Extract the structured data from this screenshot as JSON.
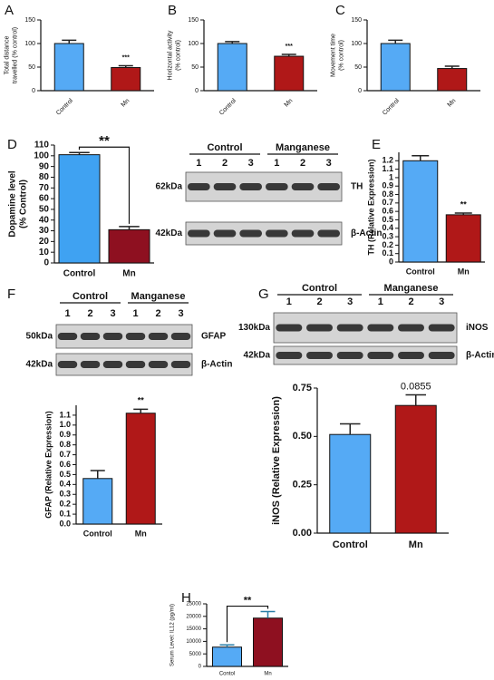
{
  "chart_data": [
    {
      "type": "bar",
      "panel": "A",
      "ylabel": [
        "Total distance",
        "travelled (% control)"
      ],
      "categories": [
        "Control",
        "Mn"
      ],
      "values": [
        100,
        49
      ],
      "errors": [
        7,
        4
      ],
      "colors": [
        "#55aaf5",
        "#b01818"
      ],
      "error_color": "#222",
      "ylim": [
        0,
        150
      ],
      "yticks": [
        0,
        50,
        100,
        150
      ],
      "annotation": "***"
    },
    {
      "type": "bar",
      "panel": "B",
      "ylabel": [
        "Horizontal activity",
        "(% control)"
      ],
      "categories": [
        "Control",
        "Mn"
      ],
      "values": [
        100,
        73
      ],
      "errors": [
        4,
        4
      ],
      "colors": [
        "#55aaf5",
        "#b01818"
      ],
      "error_color": "#222",
      "ylim": [
        0,
        150
      ],
      "yticks": [
        0,
        50,
        100,
        150
      ],
      "annotation": "***"
    },
    {
      "type": "bar",
      "panel": "C",
      "ylabel": [
        "Movement time",
        "(% control)"
      ],
      "categories": [
        "Control",
        "Mn"
      ],
      "values": [
        100,
        47
      ],
      "errors": [
        7,
        5
      ],
      "colors": [
        "#55aaf5",
        "#b01818"
      ],
      "error_color": "#222",
      "ylim": [
        0,
        150
      ],
      "yticks": [
        0,
        50,
        100,
        150
      ]
    },
    {
      "type": "bar",
      "panel": "D",
      "ylabel": [
        "Dopamine level",
        "(% Control)"
      ],
      "categories": [
        "Control",
        "Mn"
      ],
      "values": [
        101,
        31
      ],
      "errors": [
        2,
        3
      ],
      "colors": [
        "#3fa2f2",
        "#8e1020"
      ],
      "error_color": "#222",
      "ylim": [
        0,
        110
      ],
      "yticks": [
        0,
        10,
        20,
        30,
        40,
        50,
        60,
        70,
        80,
        90,
        100,
        110
      ],
      "annotation": "**"
    },
    {
      "type": "bar",
      "panel": "E",
      "ylabel": [
        "TH (Relative Expression)"
      ],
      "categories": [
        "Control",
        "Mn"
      ],
      "values": [
        1.2,
        0.56
      ],
      "errors": [
        0.06,
        0.02
      ],
      "colors": [
        "#55aaf5",
        "#b01818"
      ],
      "error_color": "#222",
      "ylim": [
        0,
        1.3
      ],
      "yticks": [
        0,
        0.1,
        0.2,
        0.3,
        0.4,
        0.5,
        0.6,
        0.7,
        0.8,
        0.9,
        1,
        1.1,
        1.2
      ],
      "annotation": "**"
    },
    {
      "type": "bar",
      "panel": "F",
      "ylabel": [
        "GFAP (Relative Expression)"
      ],
      "categories": [
        "Control",
        "Mn"
      ],
      "values": [
        0.46,
        1.12
      ],
      "errors": [
        0.08,
        0.04
      ],
      "colors": [
        "#55aaf5",
        "#b01818"
      ],
      "error_color": "#222",
      "ylim": [
        0,
        1.2
      ],
      "yticks": [
        {
          "value": 0,
          "label": "0.0"
        },
        0.1,
        0.2,
        0.3,
        0.4,
        0.5,
        0.6,
        0.7,
        0.8,
        0.9,
        {
          "value": 1,
          "label": "1.0"
        },
        1.1
      ],
      "annotation": "**"
    },
    {
      "type": "bar",
      "panel": "G",
      "ylabel": [
        "iNOS (Relative Expression)"
      ],
      "categories": [
        "Control",
        "Mn"
      ],
      "values": [
        0.51,
        0.66
      ],
      "errors": [
        0.055,
        0.055
      ],
      "colors": [
        "#55aaf5",
        "#b01818"
      ],
      "error_color": "#222",
      "ylim": [
        0,
        0.75
      ],
      "yticks": [
        {
          "value": 0,
          "label": "0.00"
        },
        0.25,
        {
          "value": 0.5,
          "label": "0.50"
        },
        0.75
      ],
      "annotation": "0.0855"
    },
    {
      "type": "bar",
      "panel": "H",
      "ylabel": [
        "Serum Level: IL12 (pg/ml)"
      ],
      "categories": [
        "Contol",
        "Mn"
      ],
      "values": [
        7700,
        19300
      ],
      "errors": [
        900,
        2600
      ],
      "colors": [
        "#55aaf5",
        "#8e1020"
      ],
      "error_color": "#2a7fa8",
      "ylim": [
        0,
        25000
      ],
      "yticks": [
        0,
        5000,
        10000,
        15000,
        20000,
        25000
      ],
      "annotation": "**"
    }
  ],
  "blots": [
    {
      "groups": [
        "Control",
        "Manganese"
      ],
      "lanes": [
        "1",
        "2",
        "3",
        "1",
        "2",
        "3"
      ],
      "rows": [
        {
          "size": "62kDa",
          "protein": "TH"
        },
        {
          "size": "42kDa",
          "protein": "β-Actin"
        }
      ]
    },
    {
      "groups": [
        "Control",
        "Manganese"
      ],
      "lanes": [
        "1",
        "2",
        "3",
        "1",
        "2",
        "3"
      ],
      "rows": [
        {
          "size": "50kDa",
          "protein": "GFAP"
        },
        {
          "size": "42kDa",
          "protein": "β-Actin"
        }
      ]
    },
    {
      "groups": [
        "Control",
        "Manganese"
      ],
      "lanes": [
        "1",
        "2",
        "3",
        "1",
        "2",
        "3"
      ],
      "rows": [
        {
          "size": "130kDa",
          "protein": "iNOS"
        },
        {
          "size": "42kDa",
          "protein": "β-Actin"
        }
      ]
    }
  ]
}
